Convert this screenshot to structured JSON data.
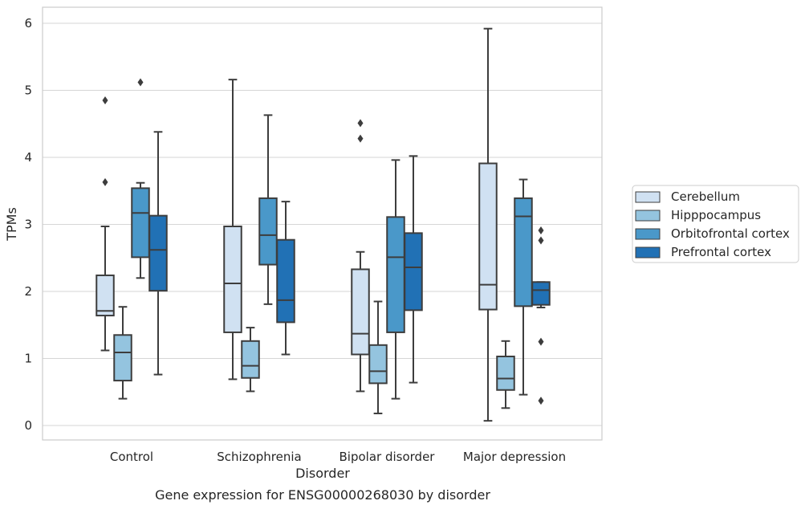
{
  "chart_data": {
    "type": "box",
    "title": "",
    "caption": "Gene expression for ENSG00000268030 by disorder",
    "xlabel": "Disorder",
    "ylabel": "TPMs",
    "ylim": [
      -0.2,
      6.2
    ],
    "yticks": [
      0,
      1,
      2,
      3,
      4,
      5,
      6
    ],
    "grid": "horizontal",
    "legend_position": "right",
    "categories": [
      "Control",
      "Schizophrenia",
      "Bipolar disorder",
      "Major depression"
    ],
    "series": [
      {
        "name": "Cerebellum",
        "color": "#d0e1f2",
        "boxes": [
          {
            "whislo": 1.12,
            "q1": 1.64,
            "med": 1.71,
            "q3": 2.24,
            "whishi": 2.97,
            "fliers": [
              3.63,
              4.85
            ]
          },
          {
            "whislo": 0.69,
            "q1": 1.39,
            "med": 2.12,
            "q3": 2.97,
            "whishi": 5.16,
            "fliers": []
          },
          {
            "whislo": 0.51,
            "q1": 1.06,
            "med": 1.37,
            "q3": 2.33,
            "whishi": 2.59,
            "fliers": [
              4.28,
              4.51
            ]
          },
          {
            "whislo": 0.07,
            "q1": 1.73,
            "med": 2.1,
            "q3": 3.91,
            "whishi": 5.92,
            "fliers": []
          }
        ]
      },
      {
        "name": "Hipppocampus",
        "color": "#94c4df",
        "boxes": [
          {
            "whislo": 0.4,
            "q1": 0.67,
            "med": 1.09,
            "q3": 1.35,
            "whishi": 1.77,
            "fliers": []
          },
          {
            "whislo": 0.51,
            "q1": 0.71,
            "med": 0.89,
            "q3": 1.26,
            "whishi": 1.46,
            "fliers": []
          },
          {
            "whislo": 0.18,
            "q1": 0.63,
            "med": 0.81,
            "q3": 1.2,
            "whishi": 1.85,
            "fliers": []
          },
          {
            "whislo": 0.26,
            "q1": 0.53,
            "med": 0.7,
            "q3": 1.03,
            "whishi": 1.26,
            "fliers": []
          }
        ]
      },
      {
        "name": "Orbitofrontal cortex",
        "color": "#4a98c9",
        "boxes": [
          {
            "whislo": 2.2,
            "q1": 2.51,
            "med": 3.17,
            "q3": 3.54,
            "whishi": 3.62,
            "fliers": [
              5.12
            ]
          },
          {
            "whislo": 1.81,
            "q1": 2.4,
            "med": 2.84,
            "q3": 3.39,
            "whishi": 4.63,
            "fliers": []
          },
          {
            "whislo": 0.4,
            "q1": 1.39,
            "med": 2.51,
            "q3": 3.11,
            "whishi": 3.96,
            "fliers": []
          },
          {
            "whislo": 0.46,
            "q1": 1.78,
            "med": 3.12,
            "q3": 3.39,
            "whishi": 3.67,
            "fliers": []
          }
        ]
      },
      {
        "name": "Prefrontal cortex",
        "color": "#2171b5",
        "boxes": [
          {
            "whislo": 0.76,
            "q1": 2.01,
            "med": 2.62,
            "q3": 3.13,
            "whishi": 4.38,
            "fliers": []
          },
          {
            "whislo": 1.06,
            "q1": 1.54,
            "med": 1.87,
            "q3": 2.77,
            "whishi": 3.34,
            "fliers": []
          },
          {
            "whislo": 0.64,
            "q1": 1.72,
            "med": 2.36,
            "q3": 2.87,
            "whishi": 4.02,
            "fliers": []
          },
          {
            "whislo": 1.76,
            "q1": 1.8,
            "med": 2.02,
            "q3": 2.14,
            "whishi": 2.14,
            "fliers": [
              0.37,
              1.25,
              2.76,
              2.91
            ]
          }
        ]
      }
    ]
  }
}
